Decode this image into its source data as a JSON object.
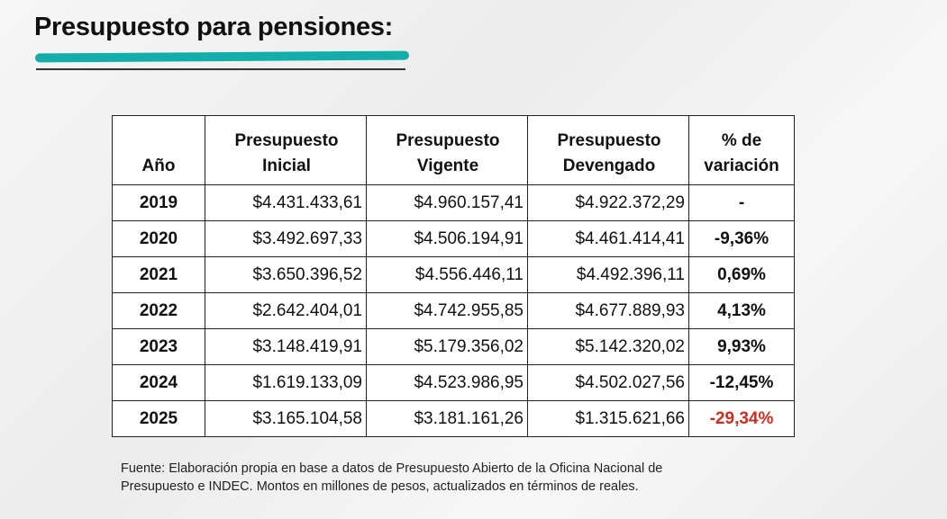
{
  "title": "Presupuesto para pensiones:",
  "table": {
    "headers": [
      "Año",
      "Presupuesto Inicial",
      "Presupuesto Vigente",
      "Presupuesto Devengado",
      "% de variación"
    ],
    "rows": [
      [
        "2019",
        "$4.431.433,61",
        "$4.960.157,41",
        "$4.922.372,29",
        "-"
      ],
      [
        "2020",
        "$3.492.697,33",
        "$4.506.194,91",
        "$4.461.414,41",
        "-9,36%"
      ],
      [
        "2021",
        "$3.650.396,52",
        "$4.556.446,11",
        "$4.492.396,11",
        "0,69%"
      ],
      [
        "2022",
        "$2.642.404,01",
        "$4.742.955,85",
        "$4.677.889,93",
        "4,13%"
      ],
      [
        "2023",
        "$3.148.419,91",
        "$5.179.356,02",
        "$5.142.320,02",
        "9,93%"
      ],
      [
        "2024",
        "$1.619.133,09",
        "$4.523.986,95",
        "$4.502.027,56",
        "-12,45%"
      ],
      [
        "2025",
        "$3.165.104,58",
        "$3.181.161,26",
        "$1.315.621,66",
        "-29,34%"
      ]
    ],
    "highlight_color": "#d8281e"
  },
  "note_line1": "Fuente: Elaboración propia en base a datos de Presupuesto Abierto de la Oficina Nacional de",
  "note_line2": "Presupuesto e INDEC. Montos en millones de pesos, actualizados en términos de reales."
}
